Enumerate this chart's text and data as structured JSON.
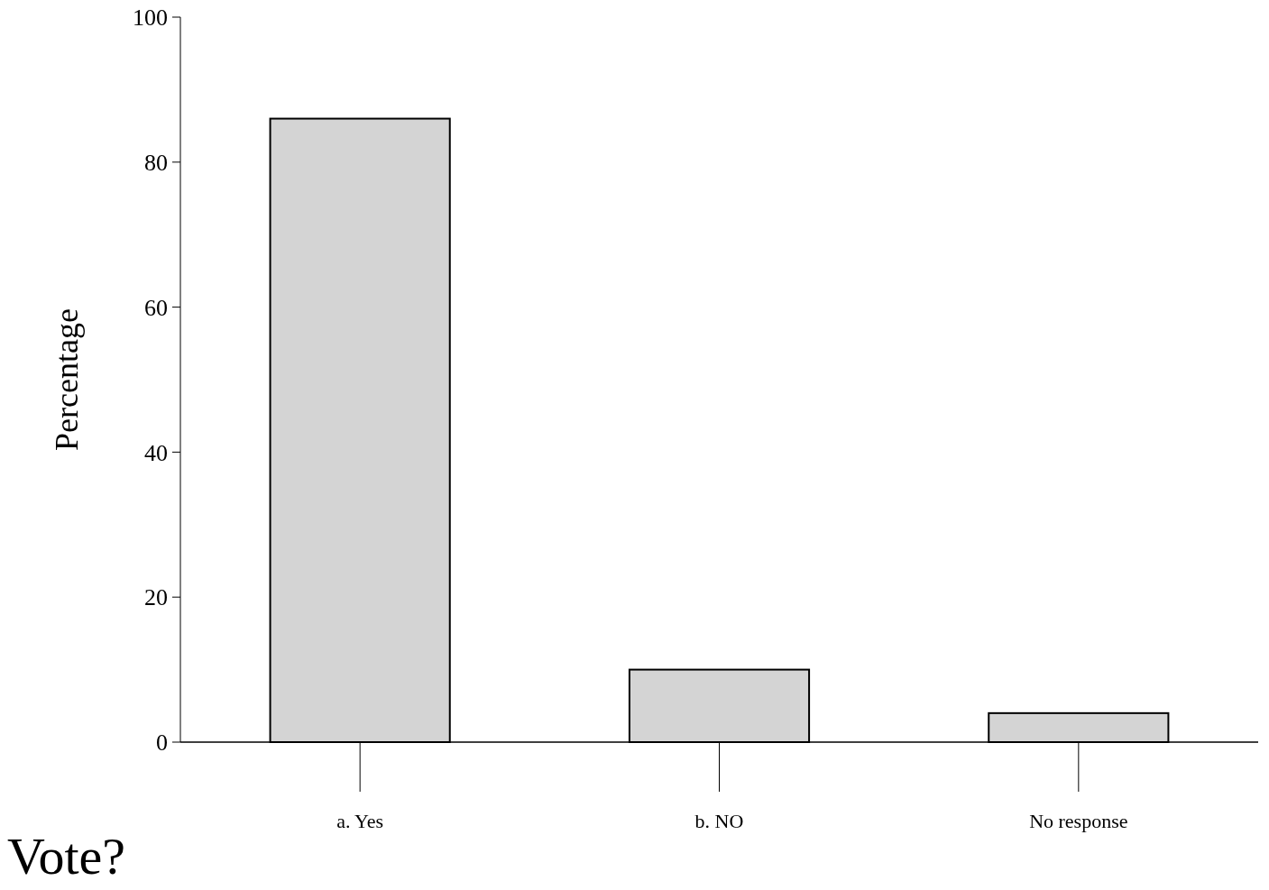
{
  "chart_data": {
    "type": "bar",
    "xlabel": "Vote?",
    "ylabel": "Percentage",
    "categories": [
      "a. Yes",
      "b. NO",
      "No response"
    ],
    "values": [
      86,
      10,
      4
    ],
    "color": "#d4d4d4",
    "ylim": [
      0,
      100
    ],
    "yticks": [
      0,
      20,
      40,
      60,
      80,
      100
    ],
    "grid": false
  }
}
